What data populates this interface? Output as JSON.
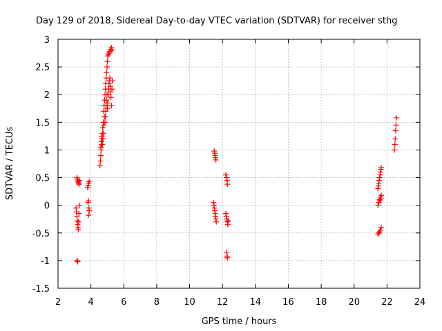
{
  "chart_data": {
    "type": "scatter",
    "title": "Day 129 of 2018, Sidereal Day-to-day VTEC variation (SDTVAR) for receiver sthg",
    "xlabel": "GPS time / hours",
    "ylabel": "SDTVAR / TECUs",
    "xlim": [
      2,
      24
    ],
    "ylim": [
      -1.5,
      3
    ],
    "xticks": [
      2,
      4,
      6,
      8,
      10,
      12,
      14,
      16,
      18,
      20,
      22,
      24
    ],
    "yticks": [
      -1.5,
      -1,
      -0.5,
      0,
      0.5,
      1,
      1.5,
      2,
      2.5,
      3
    ],
    "grid": true,
    "marker": "plus",
    "color": "#ff0000",
    "series": [
      {
        "name": "SDTVAR",
        "points": [
          [
            3.15,
            0.5
          ],
          [
            3.18,
            0.47
          ],
          [
            3.2,
            0.44
          ],
          [
            3.22,
            0.42
          ],
          [
            3.25,
            0.4
          ],
          [
            3.28,
            0.38
          ],
          [
            3.3,
            0.45
          ],
          [
            3.1,
            -0.05
          ],
          [
            3.12,
            -0.12
          ],
          [
            3.15,
            -0.2
          ],
          [
            3.17,
            -0.28
          ],
          [
            3.19,
            -0.35
          ],
          [
            3.21,
            -0.4
          ],
          [
            3.23,
            -0.44
          ],
          [
            3.25,
            -0.3
          ],
          [
            3.27,
            -0.15
          ],
          [
            3.3,
            0.0
          ],
          [
            3.15,
            -1.0
          ],
          [
            3.2,
            -1.02
          ],
          [
            3.8,
            0.32
          ],
          [
            3.83,
            0.36
          ],
          [
            3.86,
            0.4
          ],
          [
            3.9,
            0.43
          ],
          [
            3.82,
            0.05
          ],
          [
            3.85,
            0.08
          ],
          [
            3.88,
            -0.05
          ],
          [
            3.9,
            -0.1
          ],
          [
            3.85,
            -0.18
          ],
          [
            4.55,
            0.72
          ],
          [
            4.58,
            0.8
          ],
          [
            4.6,
            0.9
          ],
          [
            4.62,
            1.0
          ],
          [
            4.65,
            1.1
          ],
          [
            4.68,
            1.2
          ],
          [
            4.7,
            1.3
          ],
          [
            4.72,
            1.4
          ],
          [
            4.75,
            1.5
          ],
          [
            4.6,
            1.05
          ],
          [
            4.63,
            1.15
          ],
          [
            4.66,
            1.25
          ],
          [
            4.7,
            1.1
          ],
          [
            4.73,
            1.2
          ],
          [
            4.76,
            1.3
          ],
          [
            4.79,
            1.45
          ],
          [
            4.82,
            1.6
          ],
          [
            4.78,
            1.7
          ],
          [
            4.8,
            1.8
          ],
          [
            4.83,
            1.9
          ],
          [
            4.86,
            2.0
          ],
          [
            4.88,
            2.1
          ],
          [
            4.9,
            2.2
          ],
          [
            4.93,
            2.3
          ],
          [
            4.95,
            2.4
          ],
          [
            4.98,
            2.5
          ],
          [
            5.0,
            2.6
          ],
          [
            5.03,
            2.7
          ],
          [
            4.85,
            1.5
          ],
          [
            4.88,
            1.6
          ],
          [
            4.9,
            1.7
          ],
          [
            4.93,
            1.8
          ],
          [
            4.95,
            1.9
          ],
          [
            4.98,
            2.0
          ],
          [
            5.0,
            1.75
          ],
          [
            5.02,
            1.85
          ],
          [
            5.05,
            2.0
          ],
          [
            5.08,
            2.1
          ],
          [
            5.1,
            2.2
          ],
          [
            5.12,
            2.25
          ],
          [
            5.15,
            2.3
          ],
          [
            5.18,
            2.15
          ],
          [
            5.2,
            2.05
          ],
          [
            5.22,
            1.95
          ],
          [
            5.25,
            1.8
          ],
          [
            5.28,
            2.1
          ],
          [
            5.3,
            2.25
          ],
          [
            5.05,
            2.72
          ],
          [
            5.1,
            2.75
          ],
          [
            5.15,
            2.78
          ],
          [
            5.2,
            2.82
          ],
          [
            5.25,
            2.85
          ],
          [
            5.28,
            2.8
          ],
          [
            11.5,
            0.98
          ],
          [
            11.53,
            0.94
          ],
          [
            11.55,
            0.9
          ],
          [
            11.57,
            0.86
          ],
          [
            11.6,
            0.82
          ],
          [
            11.45,
            0.05
          ],
          [
            11.48,
            0.0
          ],
          [
            11.5,
            -0.05
          ],
          [
            11.53,
            -0.1
          ],
          [
            11.55,
            -0.15
          ],
          [
            11.57,
            -0.2
          ],
          [
            11.6,
            -0.25
          ],
          [
            11.62,
            -0.3
          ],
          [
            12.2,
            0.55
          ],
          [
            12.25,
            0.5
          ],
          [
            12.28,
            0.45
          ],
          [
            12.3,
            0.38
          ],
          [
            12.2,
            -0.15
          ],
          [
            12.23,
            -0.2
          ],
          [
            12.26,
            -0.25
          ],
          [
            12.29,
            -0.3
          ],
          [
            12.32,
            -0.35
          ],
          [
            12.35,
            -0.28
          ],
          [
            12.25,
            -0.85
          ],
          [
            12.28,
            -0.92
          ],
          [
            12.3,
            -0.95
          ],
          [
            21.45,
            0.3
          ],
          [
            21.48,
            0.35
          ],
          [
            21.5,
            0.4
          ],
          [
            21.52,
            0.45
          ],
          [
            21.55,
            0.5
          ],
          [
            21.58,
            0.55
          ],
          [
            21.6,
            0.6
          ],
          [
            21.63,
            0.65
          ],
          [
            21.65,
            0.68
          ],
          [
            21.45,
            0.0
          ],
          [
            21.5,
            0.05
          ],
          [
            21.55,
            0.1
          ],
          [
            21.6,
            0.15
          ],
          [
            21.65,
            0.18
          ],
          [
            21.62,
            0.12
          ],
          [
            21.58,
            0.08
          ],
          [
            21.45,
            -0.52
          ],
          [
            21.5,
            -0.5
          ],
          [
            21.55,
            -0.48
          ],
          [
            21.6,
            -0.45
          ],
          [
            21.65,
            -0.4
          ],
          [
            22.45,
            1.0
          ],
          [
            22.48,
            1.1
          ],
          [
            22.5,
            1.2
          ],
          [
            22.52,
            1.35
          ],
          [
            22.55,
            1.45
          ],
          [
            22.58,
            1.58
          ]
        ]
      }
    ]
  }
}
